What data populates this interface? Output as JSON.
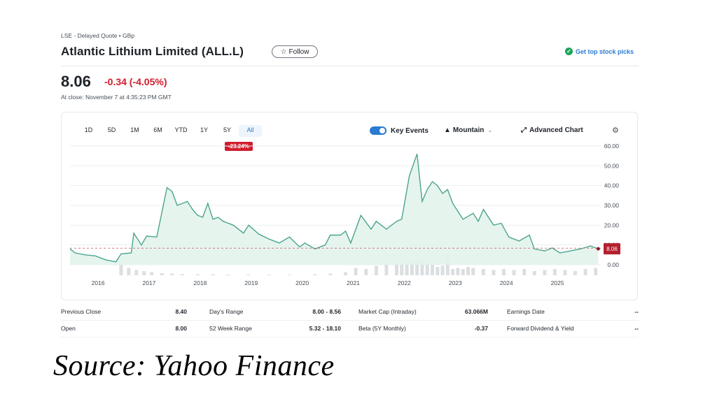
{
  "header": {
    "exchange": "LSE - Delayed Quote • GBp",
    "title": "Atlantic Lithium Limited (ALL.L)",
    "follow_label": "Follow",
    "picks_label": "Get top stock picks"
  },
  "quote": {
    "price": "8.06",
    "change": "-0.34 (-4.05%)",
    "at_close": "At close: November 7 at 4:35:23 PM GMT"
  },
  "chart_toolbar": {
    "ranges": [
      "1D",
      "5D",
      "1M",
      "6M",
      "YTD",
      "1Y",
      "5Y",
      "All"
    ],
    "active_range": "All",
    "key_events_label": "Key Events",
    "key_events_on": true,
    "chart_type_label": "Mountain",
    "advanced_label": "Advanced Chart",
    "period_change": "-23.24%"
  },
  "chart_data": {
    "type": "area",
    "title": "",
    "xlabel": "",
    "ylabel": "",
    "x_tick_labels": [
      "2016",
      "2017",
      "2018",
      "2019",
      "2020",
      "2021",
      "2022",
      "2023",
      "2024",
      "2025"
    ],
    "y_tick_labels": [
      "60.00",
      "50.00",
      "40.00",
      "30.00",
      "20.00",
      "10.00",
      "0.00"
    ],
    "ylim": [
      0,
      60
    ],
    "xlim": [
      2015.5,
      2025.9
    ],
    "reference_value": 8.4,
    "last_value_label": "8.06",
    "line_color": "#4aa58c",
    "fill_color": "#e3f3ec",
    "series": [
      {
        "x": [
          2015.5,
          2015.6,
          2015.8,
          2016.0,
          2016.2,
          2016.4,
          2016.5,
          2016.7,
          2016.75,
          2016.9,
          2017.0,
          2017.2,
          2017.4,
          2017.5,
          2017.6,
          2017.8,
          2017.9,
          2018.0,
          2018.1,
          2018.2,
          2018.3,
          2018.4,
          2018.5,
          2018.6,
          2018.7,
          2018.9,
          2019.0,
          2019.2,
          2019.4,
          2019.6,
          2019.8,
          2020.0,
          2020.1,
          2020.3,
          2020.5,
          2020.6,
          2020.8,
          2020.9,
          2021.0,
          2021.2,
          2021.4,
          2021.5,
          2021.7,
          2021.9,
          2022.0,
          2022.15,
          2022.3,
          2022.4,
          2022.5,
          2022.6,
          2022.7,
          2022.8,
          2022.9,
          2023.0,
          2023.2,
          2023.4,
          2023.5,
          2023.6,
          2023.8,
          2023.95,
          2024.1,
          2024.3,
          2024.5,
          2024.6,
          2024.8,
          2024.95,
          2025.1,
          2025.3,
          2025.5,
          2025.7,
          2025.85
        ],
        "values": [
          8.0,
          6.0,
          5.0,
          4.5,
          2.5,
          1.5,
          5.5,
          6.0,
          16.0,
          10.0,
          14.5,
          14.0,
          39.0,
          37.0,
          30.0,
          32.0,
          28.0,
          25.0,
          24.0,
          31.0,
          23.0,
          24.0,
          22.0,
          21.0,
          20.0,
          16.0,
          20.0,
          15.5,
          13.0,
          11.0,
          14.0,
          9.0,
          11.0,
          8.0,
          10.0,
          15.0,
          15.0,
          17.0,
          11.0,
          25.0,
          18.0,
          22.0,
          18.0,
          22.0,
          23.0,
          45.0,
          56.0,
          32.0,
          38.0,
          42.0,
          40.0,
          36.0,
          38.0,
          31.0,
          23.0,
          26.0,
          22.0,
          28.0,
          20.0,
          21.0,
          14.0,
          12.0,
          15.0,
          8.0,
          7.0,
          8.5,
          6.0,
          7.0,
          8.0,
          9.5,
          8.06
        ]
      }
    ],
    "volume": {
      "x": [
        2016.5,
        2016.65,
        2016.8,
        2016.95,
        2017.1,
        2017.3,
        2017.5,
        2017.7,
        2018.0,
        2018.3,
        2018.6,
        2019.0,
        2019.4,
        2019.8,
        2020.3,
        2020.6,
        2020.9,
        2021.1,
        2021.3,
        2021.5,
        2021.7,
        2021.9,
        2022.0,
        2022.1,
        2022.2,
        2022.3,
        2022.4,
        2022.5,
        2022.6,
        2022.7,
        2022.8,
        2022.9,
        2023.0,
        2023.1,
        2023.2,
        2023.3,
        2023.4,
        2023.6,
        2023.8,
        2024.0,
        2024.2,
        2024.4,
        2024.6,
        2024.8,
        2025.0,
        2025.2,
        2025.4,
        2025.6,
        2025.8
      ],
      "values": [
        0.5,
        0.35,
        0.25,
        0.2,
        0.15,
        0.1,
        0.08,
        0.06,
        0.05,
        0.05,
        0.04,
        0.04,
        0.03,
        0.03,
        0.05,
        0.08,
        0.15,
        0.35,
        0.3,
        0.45,
        0.5,
        0.55,
        0.6,
        0.55,
        0.62,
        0.7,
        0.65,
        0.55,
        0.5,
        0.4,
        0.45,
        1.0,
        0.3,
        0.35,
        0.3,
        0.4,
        0.35,
        0.3,
        0.25,
        0.3,
        0.25,
        0.3,
        0.2,
        0.25,
        0.3,
        0.25,
        0.2,
        0.3,
        0.35
      ]
    }
  },
  "stats": {
    "rows": [
      [
        {
          "label": "Previous Close",
          "value": "8.40"
        },
        {
          "label": "Day's Range",
          "value": "8.00 - 8.56"
        },
        {
          "label": "Market Cap (Intraday)",
          "value": "63.066M"
        },
        {
          "label": "Earnings Date",
          "value": "--"
        }
      ],
      [
        {
          "label": "Open",
          "value": "8.00"
        },
        {
          "label": "52 Week Range",
          "value": "5.32 - 18.10"
        },
        {
          "label": "Beta (5Y Monthly)",
          "value": "-0.37"
        },
        {
          "label": "Forward Dividend & Yield",
          "value": "--"
        }
      ]
    ]
  },
  "caption": "Source: Yahoo Finance"
}
